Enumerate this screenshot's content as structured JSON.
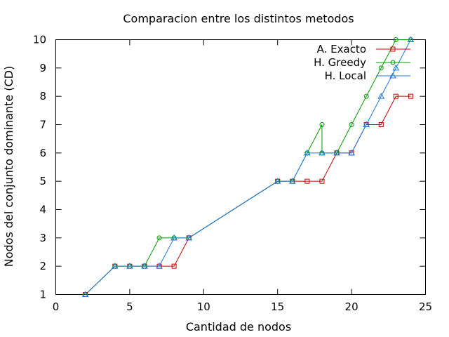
{
  "chart_data": {
    "type": "line",
    "title": "Comparacion entre los distintos metodos",
    "xlabel": "Cantidad de nodos",
    "ylabel": "Nodos del conjunto dominante (CD)",
    "xlim": [
      0,
      25
    ],
    "ylim": [
      1,
      10
    ],
    "xticks": [
      "0",
      "5",
      "10",
      "15",
      "20",
      "25"
    ],
    "yticks": [
      "1",
      "2",
      "3",
      "4",
      "5",
      "6",
      "7",
      "8",
      "9",
      "10"
    ],
    "grid": false,
    "legend_position": "top-right",
    "series": [
      {
        "name": "A. Exacto",
        "color": "#cc0000",
        "marker": "square",
        "x": [
          2,
          4,
          5,
          6,
          7,
          8,
          9,
          15,
          16,
          17,
          18,
          19,
          20,
          21,
          22,
          23,
          24
        ],
        "y": [
          1,
          2,
          2,
          2,
          2,
          2,
          3,
          5,
          5,
          5,
          5,
          6,
          6,
          7,
          7,
          8,
          8
        ]
      },
      {
        "name": "H. Greedy",
        "color": "#009900",
        "marker": "circle",
        "x": [
          2,
          4,
          5,
          6,
          7,
          8,
          9,
          15,
          16,
          17,
          18,
          18,
          19,
          20,
          21,
          22,
          23,
          24
        ],
        "y": [
          1,
          2,
          2,
          2,
          3,
          3,
          3,
          5,
          5,
          6,
          7,
          6,
          6,
          7,
          8,
          9,
          10,
          10
        ]
      },
      {
        "name": "H. Local",
        "color": "#1f78d8",
        "marker": "triangle",
        "x": [
          2,
          4,
          5,
          6,
          7,
          8,
          9,
          15,
          16,
          17,
          18,
          19,
          20,
          21,
          22,
          23,
          24
        ],
        "y": [
          1,
          2,
          2,
          2,
          2,
          3,
          3,
          5,
          5,
          6,
          6,
          6,
          6,
          7,
          8,
          9,
          10
        ]
      }
    ]
  }
}
